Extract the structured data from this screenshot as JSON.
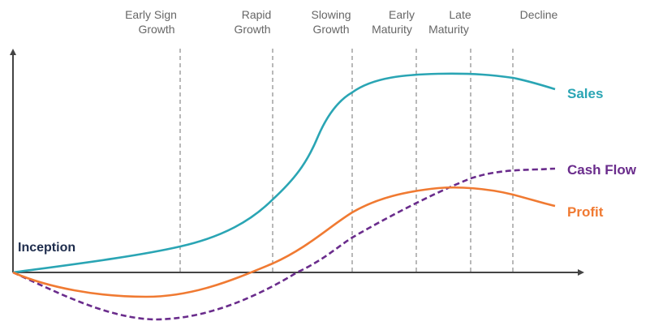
{
  "stages": [
    {
      "line1": "Early Sign",
      "line2": "Growth"
    },
    {
      "line1": "Rapid",
      "line2": "Growth"
    },
    {
      "line1": "Slowing",
      "line2": "Growth"
    },
    {
      "line1": "Early",
      "line2": "Maturity"
    },
    {
      "line1": "Late",
      "line2": "Maturity"
    },
    {
      "line1": "",
      "line2": "Decline"
    }
  ],
  "origin_label": "Inception",
  "series": {
    "sales": {
      "label": "Sales",
      "color": "#2aa5b4"
    },
    "cash_flow": {
      "label": "Cash Flow",
      "color": "#6a2c8c"
    },
    "profit": {
      "label": "Profit",
      "color": "#f07a32"
    }
  },
  "axis_color": "#444444",
  "divider_color": "#8a8a8a"
}
